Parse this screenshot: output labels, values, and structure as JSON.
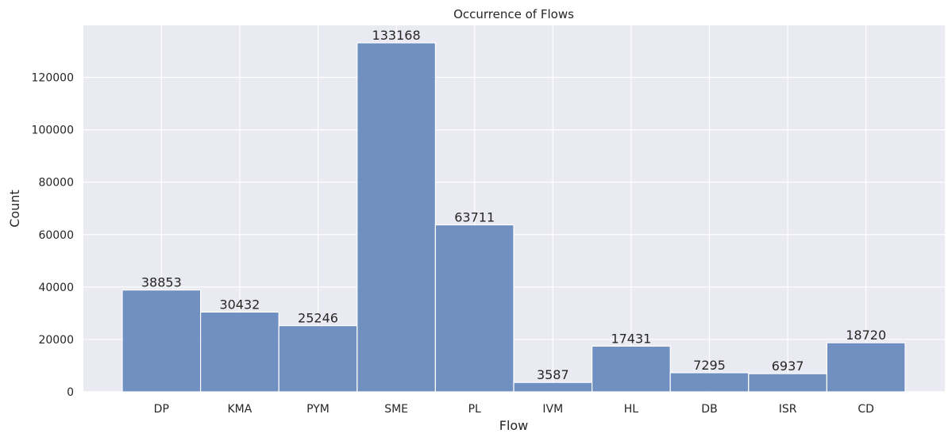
{
  "chart_data": {
    "type": "bar",
    "title": "Occurrence of Flows",
    "xlabel": "Flow",
    "ylabel": "Count",
    "categories": [
      "DP",
      "KMA",
      "PYM",
      "SME",
      "PL",
      "IVM",
      "HL",
      "DB",
      "ISR",
      "CD"
    ],
    "values": [
      38853,
      30432,
      25246,
      133168,
      63711,
      3587,
      17431,
      7295,
      6937,
      18720
    ],
    "data_labels": [
      "38853",
      "30432",
      "25246",
      "133168",
      "63711",
      "3587",
      "17431",
      "7295",
      "6937",
      "18720"
    ],
    "y_ticks": [
      0,
      20000,
      40000,
      60000,
      80000,
      100000,
      120000
    ],
    "y_tick_labels": [
      "0",
      "20000",
      "40000",
      "60000",
      "80000",
      "100000",
      "120000"
    ],
    "ylim": [
      0,
      139826
    ],
    "grid": true,
    "colors": {
      "bar_fill": "#6a8bbf",
      "bar_edge": "#ffffff",
      "plot_background": "#eaeaf2",
      "grid": "#ffffff",
      "text": "#262626"
    }
  }
}
